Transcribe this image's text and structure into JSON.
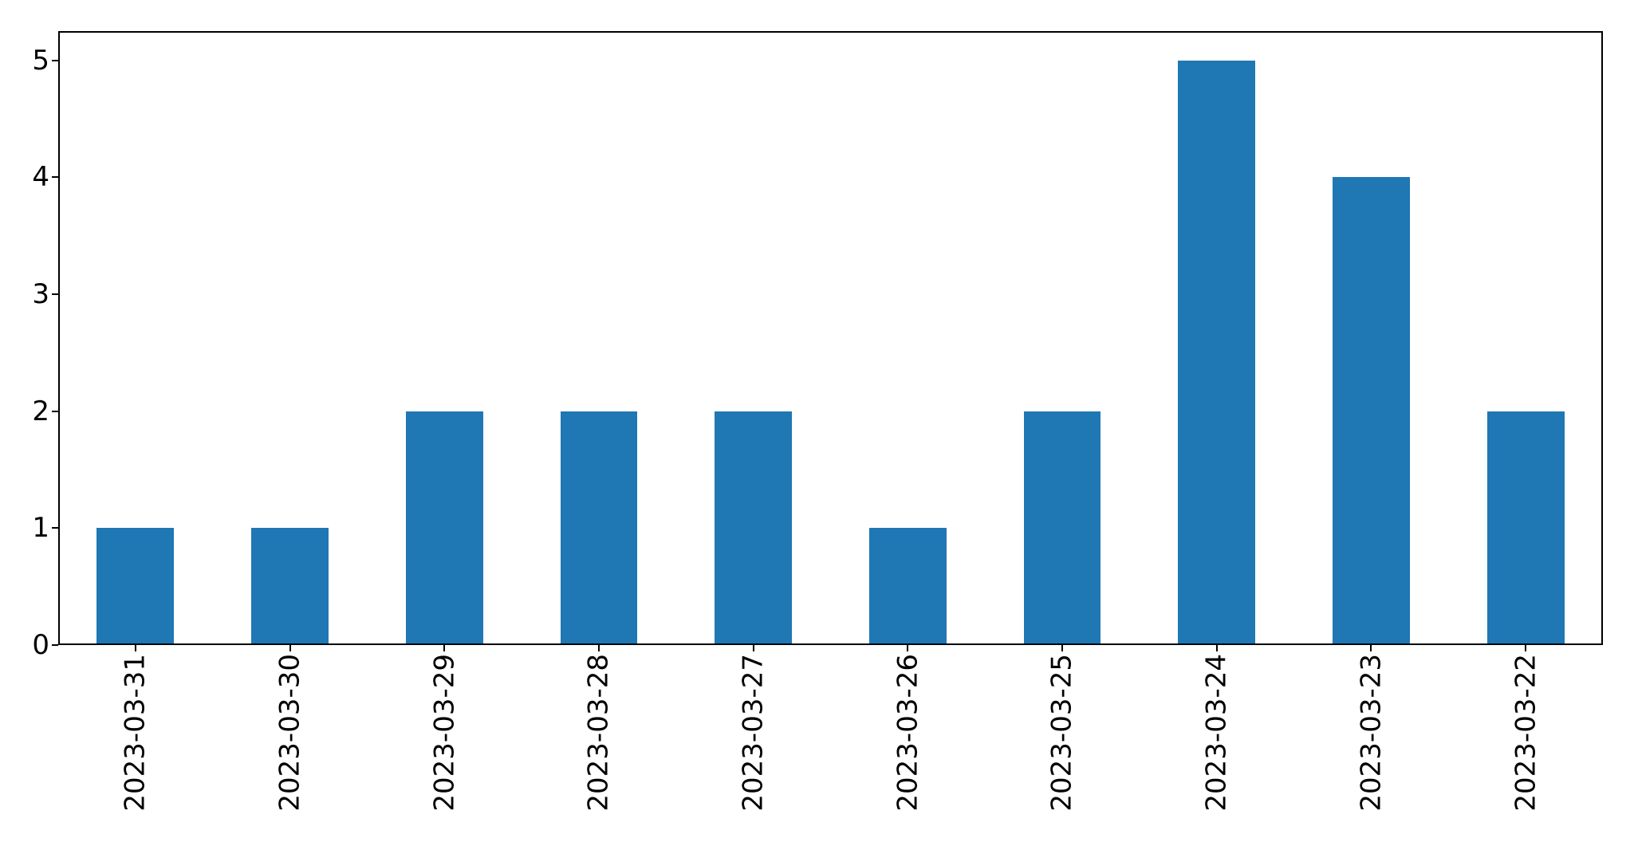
{
  "chart_data": {
    "type": "bar",
    "categories": [
      "2023-03-31",
      "2023-03-30",
      "2023-03-29",
      "2023-03-28",
      "2023-03-27",
      "2023-03-26",
      "2023-03-25",
      "2023-03-24",
      "2023-03-23",
      "2023-03-22"
    ],
    "values": [
      1,
      1,
      2,
      2,
      2,
      1,
      2,
      5,
      4,
      2
    ],
    "title": "",
    "xlabel": "",
    "ylabel": "",
    "ylim": [
      0,
      5.25
    ],
    "yticks": [
      0,
      1,
      2,
      3,
      4,
      5
    ],
    "x_tick_rotation_deg": 90,
    "bar_color": "#1f77b4",
    "axis_color": "#000000",
    "background_color": "#ffffff",
    "bar_width_fraction": 0.5,
    "grid": false,
    "legend": "none"
  }
}
